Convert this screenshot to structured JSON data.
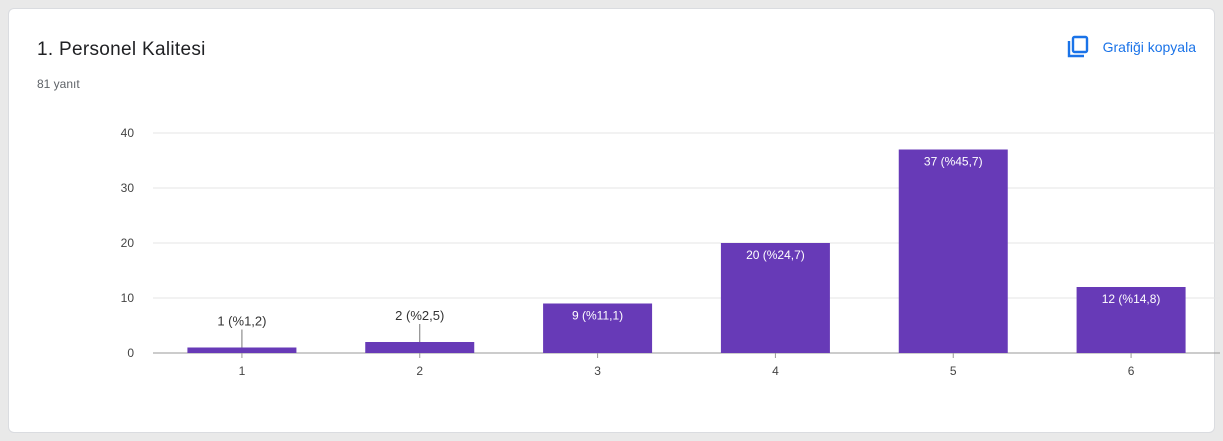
{
  "card": {
    "title": "1.  Personel Kalitesi",
    "responses": "81 yanıt",
    "copy_label": "Grafiği kopyala"
  },
  "colors": {
    "bar": "#673ab7",
    "accent": "#1a73e8",
    "grid": "#e6e6e6"
  },
  "icons": {
    "copy": "copy-icon"
  },
  "chart_data": {
    "type": "bar",
    "categories": [
      "1",
      "2",
      "3",
      "4",
      "5",
      "6"
    ],
    "values": [
      1,
      2,
      9,
      20,
      37,
      12
    ],
    "data_labels": [
      "1 (%1,2)",
      "2 (%2,5)",
      "9 (%11,1)",
      "20 (%24,7)",
      "37 (%45,7)",
      "12 (%14,8)"
    ],
    "ylim": [
      0,
      40
    ],
    "yticks": [
      0,
      10,
      20,
      30,
      40
    ],
    "grid": true,
    "title": "",
    "xlabel": "",
    "ylabel": ""
  }
}
